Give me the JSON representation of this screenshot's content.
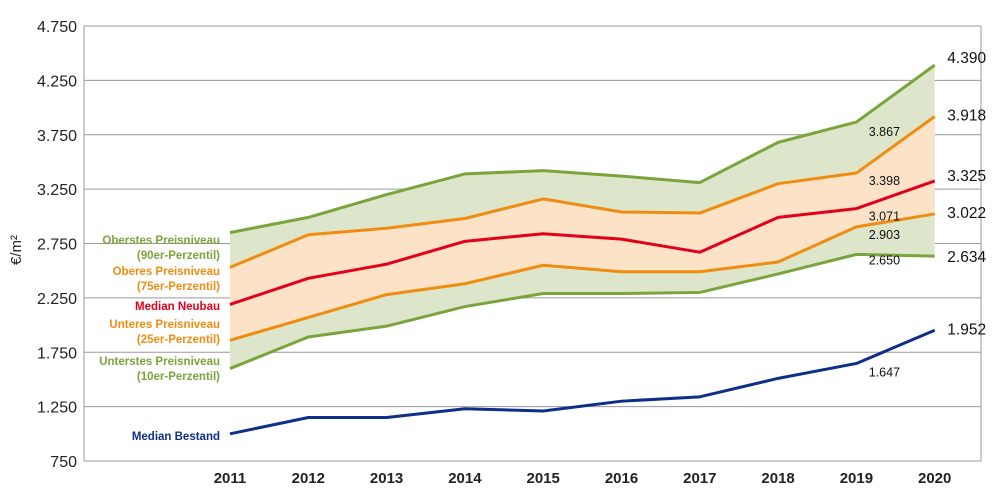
{
  "chart_data": {
    "type": "line",
    "ylabel": "€/m²",
    "categories": [
      "2011",
      "2012",
      "2013",
      "2014",
      "2015",
      "2016",
      "2017",
      "2018",
      "2019",
      "2020"
    ],
    "ylim": [
      750,
      4750
    ],
    "y_ticks": [
      "4.750",
      "4.250",
      "3.750",
      "3.250",
      "2.750",
      "2.250",
      "1.750",
      "1.250",
      "750"
    ],
    "series": [
      {
        "key": "p90",
        "name": "Oberstes Preisniveau\n(90er-Perzentil)",
        "color": "#7aa43c",
        "values": [
          2850,
          2990,
          3200,
          3390,
          3420,
          3370,
          3310,
          3680,
          3867,
          4390
        ]
      },
      {
        "key": "p75",
        "name": "Oberes Preisniveau\n(75er-Perzentil)",
        "color": "#ef8c12",
        "values": [
          2530,
          2830,
          2890,
          2980,
          3160,
          3040,
          3030,
          3300,
          3398,
          3918
        ]
      },
      {
        "key": "median_neubau",
        "name": "Median Neubau",
        "color": "#e2001a",
        "values": [
          2190,
          2430,
          2560,
          2770,
          2840,
          2790,
          2670,
          2990,
          3071,
          3325
        ]
      },
      {
        "key": "p25",
        "name": "Unteres Preisniveau\n(25er-Perzentil)",
        "color": "#ef8c12",
        "values": [
          1860,
          2070,
          2280,
          2380,
          2550,
          2490,
          2490,
          2580,
          2903,
          3022
        ]
      },
      {
        "key": "p10",
        "name": "Unterstes Preisniveau\n(10er-Perzentil)",
        "color": "#7aa43c",
        "values": [
          1600,
          1890,
          1990,
          2170,
          2290,
          2290,
          2300,
          2470,
          2650,
          2634
        ]
      },
      {
        "key": "median_bestand",
        "name": "Median Bestand",
        "color": "#0d2f87",
        "values": [
          1000,
          1150,
          1150,
          1230,
          1210,
          1300,
          1340,
          1510,
          1647,
          1952
        ]
      }
    ],
    "value_labels": [
      {
        "series": "p90",
        "year": "2019",
        "text": "3.867"
      },
      {
        "series": "p90",
        "year": "2020",
        "text": "4.390"
      },
      {
        "series": "p75",
        "year": "2019",
        "text": "3.398"
      },
      {
        "series": "p75",
        "year": "2020",
        "text": "3.918"
      },
      {
        "series": "median_neubau",
        "year": "2019",
        "text": "3.071"
      },
      {
        "series": "median_neubau",
        "year": "2020",
        "text": "3.325"
      },
      {
        "series": "p25",
        "year": "2019",
        "text": "2.903"
      },
      {
        "series": "p25",
        "year": "2020",
        "text": "3.022"
      },
      {
        "series": "p10",
        "year": "2019",
        "text": "2.650"
      },
      {
        "series": "p10",
        "year": "2020",
        "text": "2.634"
      },
      {
        "series": "median_bestand",
        "year": "2019",
        "text": "1.647"
      },
      {
        "series": "median_bestand",
        "year": "2020",
        "text": "1.952"
      }
    ],
    "bands": [
      {
        "upper": "p90",
        "lower": "p10",
        "color": "#dde6cb"
      },
      {
        "upper": "p75",
        "lower": "p25",
        "color": "#fce3c7"
      }
    ],
    "grid": true,
    "legend": "left, inline"
  }
}
